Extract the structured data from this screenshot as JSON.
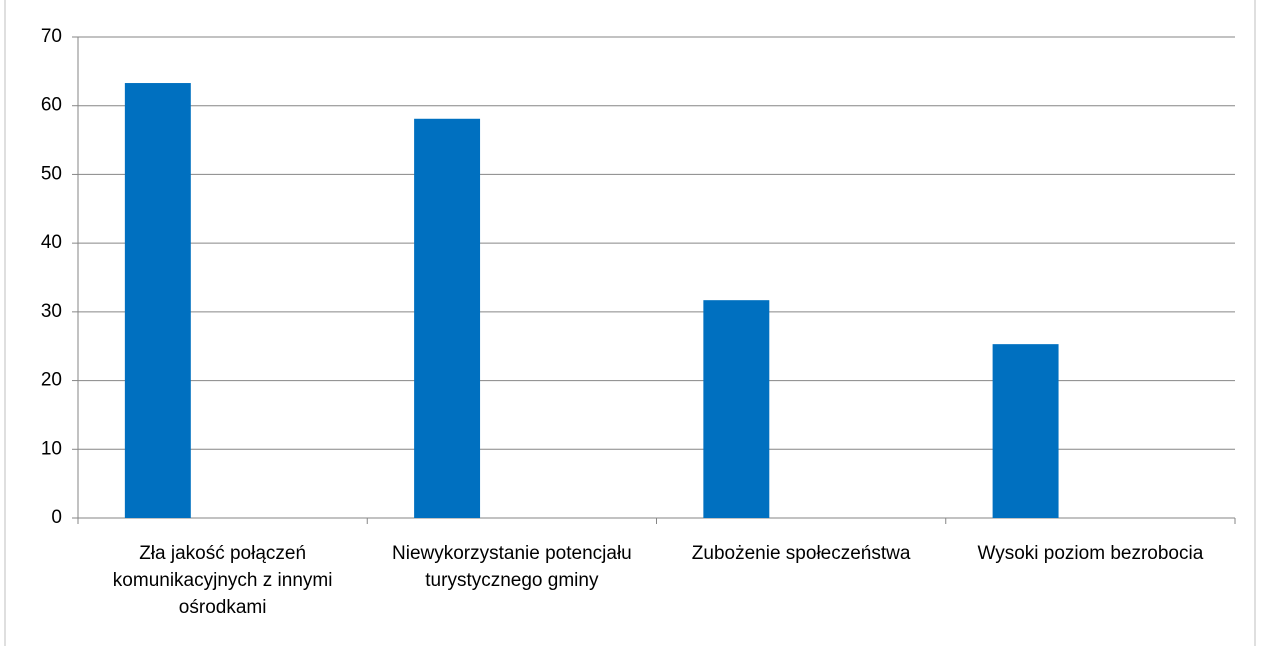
{
  "chart_data": {
    "type": "bar",
    "categories": [
      "Zła jakość  połączeń komunikacyjnych z innymi ośrodkami",
      "Niewykorzystanie potencjału turystycznego gminy",
      "Zubożenie społeczeństwa",
      "Wysoki poziom bezrobocia"
    ],
    "values": [
      63.3,
      58.1,
      31.7,
      25.3
    ],
    "color": "#0070c0",
    "ylim": [
      0,
      70
    ],
    "yticks": [
      0,
      10,
      20,
      30,
      40,
      50,
      60,
      70
    ],
    "grid": true
  }
}
